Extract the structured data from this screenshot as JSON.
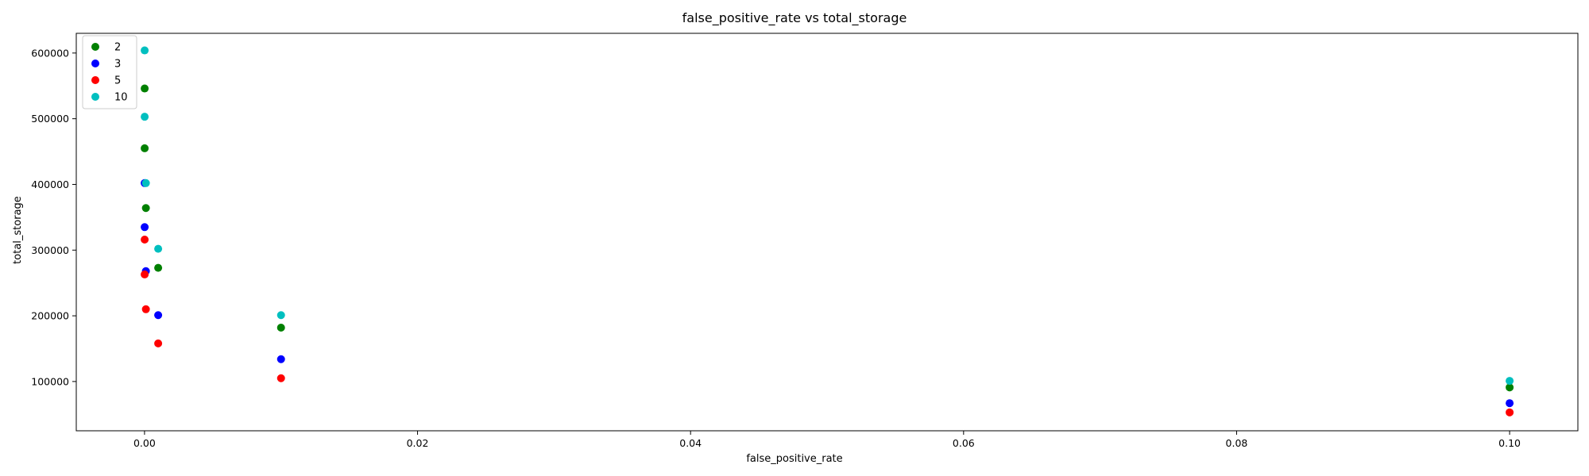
{
  "chart_data": {
    "type": "scatter",
    "title": "false_positive_rate vs total_storage",
    "xlabel": "false_positive_rate",
    "ylabel": "total_storage",
    "xlim": [
      -0.005,
      0.105
    ],
    "ylim": [
      25000,
      630000
    ],
    "xticks": [
      0.0,
      0.02,
      0.04,
      0.06,
      0.08,
      0.1
    ],
    "xtick_labels": [
      "0.00",
      "0.02",
      "0.04",
      "0.06",
      "0.08",
      "0.10"
    ],
    "yticks": [
      100000,
      200000,
      300000,
      400000,
      500000,
      600000
    ],
    "ytick_labels": [
      "100000",
      "200000",
      "300000",
      "400000",
      "500000",
      "600000"
    ],
    "grid": false,
    "legend_position": "top-left",
    "series": [
      {
        "name": "2",
        "color": "#008000",
        "points": [
          {
            "x": 1e-05,
            "y": 546000
          },
          {
            "x": 1e-05,
            "y": 455000
          },
          {
            "x": 0.0001,
            "y": 364000
          },
          {
            "x": 0.001,
            "y": 273000
          },
          {
            "x": 0.01,
            "y": 182000
          },
          {
            "x": 0.1,
            "y": 91000
          }
        ]
      },
      {
        "name": "3",
        "color": "#0000ff",
        "points": [
          {
            "x": 1e-05,
            "y": 402000
          },
          {
            "x": 1e-05,
            "y": 335000
          },
          {
            "x": 0.0001,
            "y": 268000
          },
          {
            "x": 0.001,
            "y": 201000
          },
          {
            "x": 0.01,
            "y": 134000
          },
          {
            "x": 0.1,
            "y": 67000
          }
        ]
      },
      {
        "name": "5",
        "color": "#ff0000",
        "points": [
          {
            "x": 1e-05,
            "y": 316000
          },
          {
            "x": 1e-05,
            "y": 263000
          },
          {
            "x": 0.0001,
            "y": 210000
          },
          {
            "x": 0.001,
            "y": 158000
          },
          {
            "x": 0.01,
            "y": 105000
          },
          {
            "x": 0.1,
            "y": 53000
          }
        ]
      },
      {
        "name": "10",
        "color": "#00bfbf",
        "points": [
          {
            "x": 1e-05,
            "y": 604000
          },
          {
            "x": 1e-05,
            "y": 503000
          },
          {
            "x": 0.0001,
            "y": 402000
          },
          {
            "x": 0.001,
            "y": 302000
          },
          {
            "x": 0.01,
            "y": 201000
          },
          {
            "x": 0.1,
            "y": 101000
          }
        ]
      }
    ]
  }
}
